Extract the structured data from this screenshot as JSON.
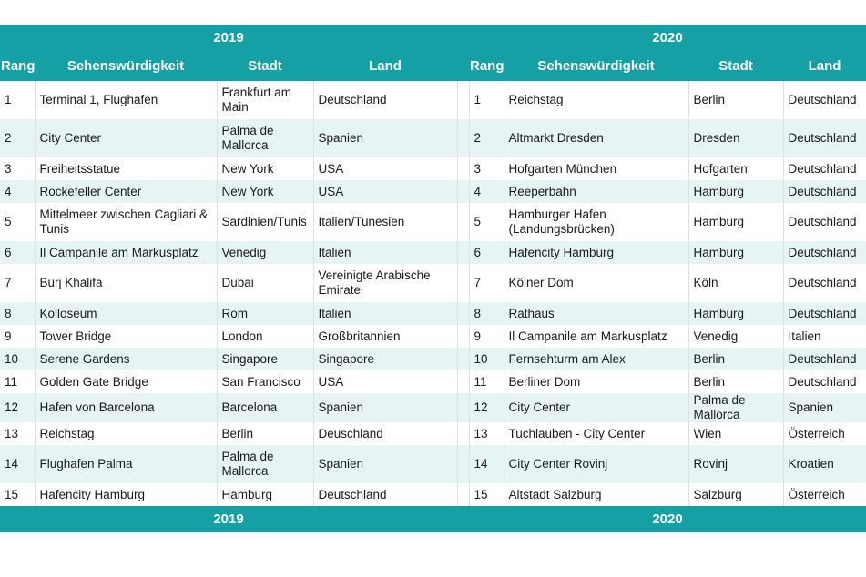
{
  "years": {
    "left": "2019",
    "right": "2020"
  },
  "headers": {
    "rank": "Rang",
    "sight": "Sehenswürdigkeit",
    "city": "Stadt",
    "country": "Land"
  },
  "colors": {
    "accent": "#14a0a4",
    "row_alt": "#e7f4f4"
  },
  "rows": [
    {
      "l": {
        "rank": "1",
        "sight": "Terminal 1, Flughafen",
        "city": "Frankfurt am Main",
        "country": "Deutschland"
      },
      "r": {
        "rank": "1",
        "sight": "Reichstag",
        "city": "Berlin",
        "country": "Deutschland"
      }
    },
    {
      "l": {
        "rank": "2",
        "sight": "City Center",
        "city": "Palma de Mallorca",
        "country": "Spanien"
      },
      "r": {
        "rank": "2",
        "sight": "Altmarkt Dresden",
        "city": "Dresden",
        "country": "Deutschland"
      }
    },
    {
      "l": {
        "rank": "3",
        "sight": "Freiheitsstatue",
        "city": "New York",
        "country": "USA"
      },
      "r": {
        "rank": "3",
        "sight": "Hofgarten München",
        "city": "Hofgarten",
        "country": "Deutschland"
      }
    },
    {
      "l": {
        "rank": "4",
        "sight": "Rockefeller Center",
        "city": "New York",
        "country": "USA"
      },
      "r": {
        "rank": "4",
        "sight": "Reeperbahn",
        "city": "Hamburg",
        "country": "Deutschland"
      }
    },
    {
      "l": {
        "rank": "5",
        "sight": "Mittelmeer zwischen Cagliari & Tunis",
        "city": "Sardinien/Tunis",
        "country": "Italien/Tunesien"
      },
      "r": {
        "rank": "5",
        "sight": "Hamburger Hafen (Landungsbrücken)",
        "city": "Hamburg",
        "country": "Deutschland"
      }
    },
    {
      "l": {
        "rank": "6",
        "sight": "Il Campanile am Markusplatz",
        "city": "Venedig",
        "country": "Italien"
      },
      "r": {
        "rank": "6",
        "sight": "Hafencity Hamburg",
        "city": "Hamburg",
        "country": "Deutschland"
      }
    },
    {
      "l": {
        "rank": "7",
        "sight": "Burj Khalifa",
        "city": "Dubai",
        "country": "Vereinigte Arabische Emirate"
      },
      "r": {
        "rank": "7",
        "sight": "Kölner Dom",
        "city": "Köln",
        "country": "Deutschland"
      }
    },
    {
      "l": {
        "rank": "8",
        "sight": "Kolloseum",
        "city": "Rom",
        "country": "Italien"
      },
      "r": {
        "rank": "8",
        "sight": "Rathaus",
        "city": "Hamburg",
        "country": "Deutschland"
      }
    },
    {
      "l": {
        "rank": "9",
        "sight": "Tower Bridge",
        "city": "London",
        "country": "Großbritannien"
      },
      "r": {
        "rank": "9",
        "sight": "Il Campanile am Markusplatz",
        "city": "Venedig",
        "country": "Italien"
      }
    },
    {
      "l": {
        "rank": "10",
        "sight": "Serene Gardens",
        "city": "Singapore",
        "country": "Singapore"
      },
      "r": {
        "rank": "10",
        "sight": "Fernsehturm am Alex",
        "city": "Berlin",
        "country": "Deutschland"
      }
    },
    {
      "l": {
        "rank": "11",
        "sight": "Golden Gate Bridge",
        "city": "San Francisco",
        "country": "USA"
      },
      "r": {
        "rank": "11",
        "sight": "Berliner Dom",
        "city": "Berlin",
        "country": "Deutschland"
      }
    },
    {
      "l": {
        "rank": "12",
        "sight": "Hafen von Barcelona",
        "city": "Barcelona",
        "country": "Spanien"
      },
      "r": {
        "rank": "12",
        "sight": "City Center",
        "city": "Palma de Mallorca",
        "country": "Spanien"
      }
    },
    {
      "l": {
        "rank": "13",
        "sight": "Reichstag",
        "city": "Berlin",
        "country": "Deuschland"
      },
      "r": {
        "rank": "13",
        "sight": "Tuchlauben - City Center",
        "city": "Wien",
        "country": "Österreich"
      }
    },
    {
      "l": {
        "rank": "14",
        "sight": "Flughafen Palma",
        "city": "Palma de Mallorca",
        "country": "Spanien"
      },
      "r": {
        "rank": "14",
        "sight": "City Center Rovinj",
        "city": "Rovinj",
        "country": "Kroatien"
      }
    },
    {
      "l": {
        "rank": "15",
        "sight": "Hafencity Hamburg",
        "city": "Hamburg",
        "country": "Deutschland"
      },
      "r": {
        "rank": "15",
        "sight": "Altstadt Salzburg",
        "city": "Salzburg",
        "country": "Österreich"
      }
    }
  ]
}
